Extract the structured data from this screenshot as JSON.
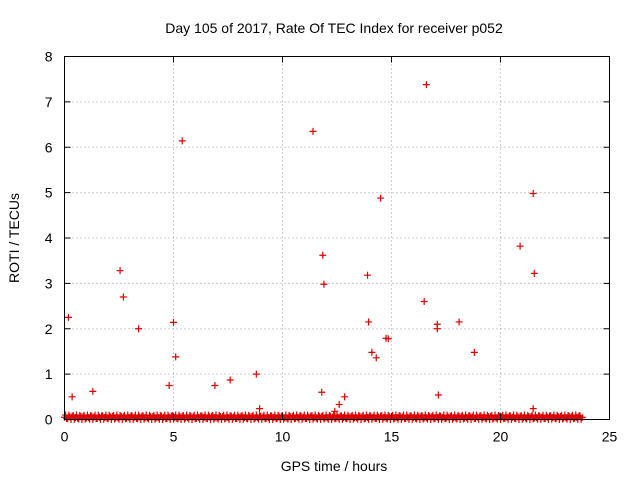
{
  "chart_data": {
    "type": "scatter",
    "title": "Day 105 of 2017, Rate Of TEC Index for receiver p052",
    "xlabel": "GPS time / hours",
    "ylabel": "ROTI / TECUs",
    "xlim": [
      0,
      25
    ],
    "ylim": [
      0,
      8
    ],
    "xticks": [
      0,
      5,
      10,
      15,
      20,
      25
    ],
    "yticks": [
      0,
      1,
      2,
      3,
      4,
      5,
      6,
      7,
      8
    ],
    "xtick_labels": [
      "0",
      "5",
      "10",
      "15",
      "20",
      "25"
    ],
    "ytick_labels": [
      "0",
      "1",
      "2",
      "3",
      "4",
      "5",
      "6",
      "7",
      "8"
    ],
    "grid": true,
    "marker": "+",
    "color": "#dd0000",
    "baseline_band": {
      "x_start": 0.0,
      "x_end": 23.75,
      "y_min": 0.0,
      "y_max": 0.1,
      "step_hours": 0.05
    },
    "series": [
      {
        "name": "p052",
        "points": [
          [
            0.18,
            2.25
          ],
          [
            0.35,
            0.5
          ],
          [
            1.3,
            0.62
          ],
          [
            2.55,
            3.28
          ],
          [
            2.7,
            2.7
          ],
          [
            3.4,
            2.0
          ],
          [
            4.8,
            0.75
          ],
          [
            5.0,
            2.14
          ],
          [
            5.1,
            1.38
          ],
          [
            5.4,
            6.14
          ],
          [
            6.9,
            0.75
          ],
          [
            7.6,
            0.87
          ],
          [
            8.8,
            1.0
          ],
          [
            8.95,
            0.24
          ],
          [
            11.4,
            6.35
          ],
          [
            11.8,
            0.6
          ],
          [
            11.85,
            3.62
          ],
          [
            11.9,
            2.98
          ],
          [
            12.4,
            0.18
          ],
          [
            12.6,
            0.33
          ],
          [
            12.85,
            0.5
          ],
          [
            13.9,
            3.18
          ],
          [
            13.95,
            2.15
          ],
          [
            14.1,
            1.48
          ],
          [
            14.3,
            1.36
          ],
          [
            14.5,
            4.88
          ],
          [
            14.75,
            1.79
          ],
          [
            14.85,
            1.78
          ],
          [
            16.5,
            2.6
          ],
          [
            16.6,
            7.38
          ],
          [
            17.1,
            2.1
          ],
          [
            17.1,
            2.0
          ],
          [
            17.15,
            0.54
          ],
          [
            18.1,
            2.15
          ],
          [
            18.8,
            1.48
          ],
          [
            20.9,
            3.82
          ],
          [
            21.5,
            4.98
          ],
          [
            21.55,
            3.22
          ],
          [
            21.5,
            0.24
          ]
        ]
      }
    ]
  }
}
